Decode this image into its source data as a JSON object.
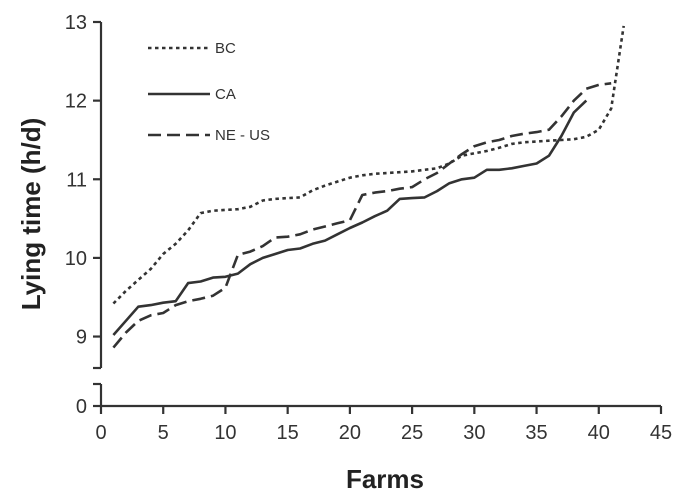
{
  "chart_data": {
    "type": "line",
    "xlabel": "Farms",
    "ylabel": "Lying time (h/d)",
    "xlim": [
      0,
      45
    ],
    "x_ticks": [
      "0",
      "5",
      "10",
      "15",
      "20",
      "25",
      "30",
      "35",
      "40",
      "45"
    ],
    "y_ticks": [
      "0",
      "9",
      "10",
      "11",
      "12",
      "13"
    ],
    "y_axis_break": {
      "lower": 0,
      "upper": 9
    },
    "ylim": [
      8.6,
      13
    ],
    "grid": false,
    "legend_placement": "top-left",
    "series": [
      {
        "name": "BC",
        "style": "dotted",
        "x": [
          1,
          2,
          3,
          4,
          5,
          6,
          7,
          8,
          9,
          10,
          11,
          12,
          13,
          14,
          15,
          16,
          17,
          18,
          19,
          20,
          21,
          22,
          23,
          24,
          25,
          26,
          27,
          28,
          29,
          30,
          31,
          32,
          33,
          34,
          35,
          36,
          37,
          38,
          39,
          40,
          41,
          42
        ],
        "y": [
          9.42,
          9.58,
          9.72,
          9.86,
          10.05,
          10.18,
          10.35,
          10.57,
          10.6,
          10.61,
          10.62,
          10.65,
          10.73,
          10.75,
          10.76,
          10.77,
          10.86,
          10.92,
          10.97,
          11.02,
          11.05,
          11.07,
          11.08,
          11.09,
          11.1,
          11.12,
          11.14,
          11.2,
          11.3,
          11.33,
          11.36,
          11.4,
          11.45,
          11.47,
          11.48,
          11.49,
          11.5,
          11.51,
          11.54,
          11.63,
          11.9,
          12.95
        ]
      },
      {
        "name": "CA",
        "style": "solid",
        "x": [
          1,
          2,
          3,
          4,
          5,
          6,
          7,
          8,
          9,
          10,
          11,
          12,
          13,
          14,
          15,
          16,
          17,
          18,
          19,
          20,
          21,
          22,
          23,
          24,
          25,
          26,
          27,
          28,
          29,
          30,
          31,
          32,
          33,
          34,
          35,
          36,
          37,
          38,
          39
        ],
        "y": [
          9.02,
          9.2,
          9.38,
          9.4,
          9.43,
          9.45,
          9.68,
          9.7,
          9.75,
          9.76,
          9.8,
          9.92,
          10.0,
          10.05,
          10.1,
          10.12,
          10.18,
          10.22,
          10.3,
          10.38,
          10.45,
          10.53,
          10.6,
          10.75,
          10.76,
          10.77,
          10.85,
          10.95,
          11.0,
          11.02,
          11.12,
          11.12,
          11.14,
          11.17,
          11.2,
          11.3,
          11.55,
          11.85,
          12.0
        ]
      },
      {
        "name": "NE - US",
        "style": "dashed",
        "x": [
          1,
          2,
          3,
          4,
          5,
          6,
          7,
          8,
          9,
          10,
          11,
          12,
          13,
          14,
          15,
          16,
          17,
          18,
          19,
          20,
          21,
          22,
          23,
          24,
          25,
          26,
          27,
          28,
          29,
          30,
          31,
          32,
          33,
          34,
          35,
          36,
          37,
          38,
          39,
          40,
          41
        ],
        "y": [
          8.86,
          9.05,
          9.2,
          9.27,
          9.3,
          9.4,
          9.45,
          9.48,
          9.52,
          9.62,
          10.04,
          10.08,
          10.15,
          10.26,
          10.27,
          10.3,
          10.36,
          10.4,
          10.44,
          10.48,
          10.8,
          10.83,
          10.85,
          10.88,
          10.9,
          11.0,
          11.08,
          11.2,
          11.32,
          11.42,
          11.47,
          11.5,
          11.55,
          11.58,
          11.6,
          11.63,
          11.8,
          12.0,
          12.15,
          12.2,
          12.22
        ]
      }
    ]
  }
}
